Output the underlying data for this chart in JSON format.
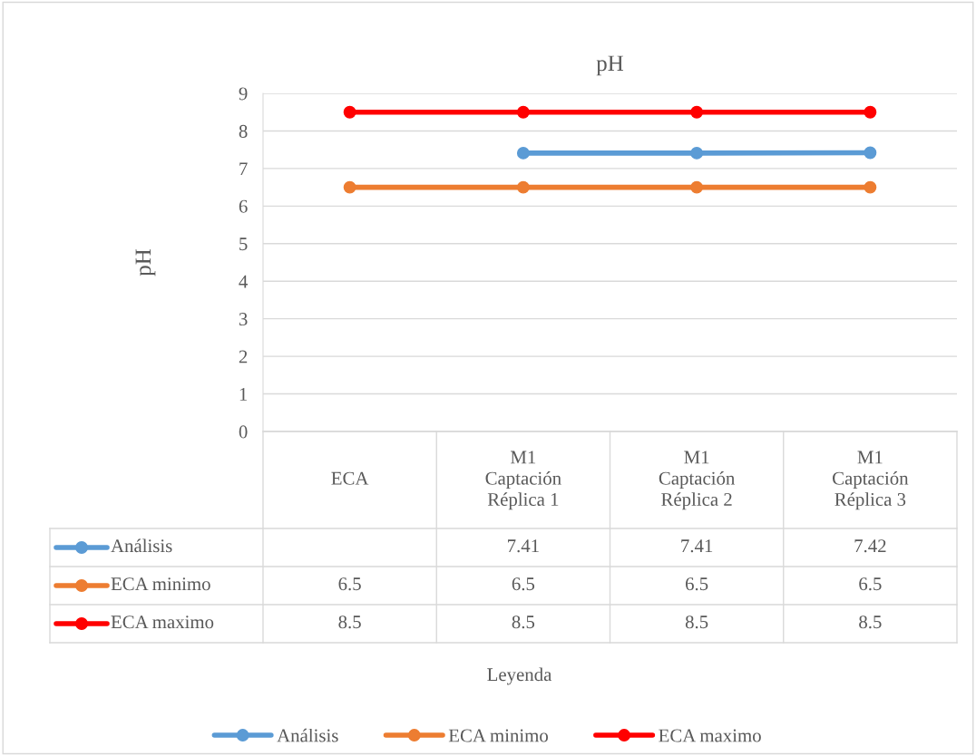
{
  "chart_data": {
    "type": "line",
    "title": "pH",
    "ylabel": "pH",
    "annotations": [
      "Leyenda"
    ],
    "categories": [
      "ECA",
      "M1\nCaptación\nRéplica 1",
      "M1\nCaptación\nRéplica 2",
      "M1\nCaptación\nRéplica 3"
    ],
    "series": [
      {
        "name": "Análisis",
        "color": "#5b9bd5",
        "values": [
          null,
          7.41,
          7.41,
          7.42
        ]
      },
      {
        "name": "ECA minimo",
        "color": "#ed7d31",
        "values": [
          6.5,
          6.5,
          6.5,
          6.5
        ]
      },
      {
        "name": "ECA maximo",
        "color": "#ff0000",
        "values": [
          8.5,
          8.5,
          8.5,
          8.5
        ]
      }
    ],
    "ylim": [
      0,
      9
    ],
    "yticks": [
      0,
      1,
      2,
      3,
      4,
      5,
      6,
      7,
      8,
      9
    ],
    "grid": "y",
    "legend": "bottom",
    "marker": "circle",
    "line_style": "solid",
    "data_labels": true
  }
}
